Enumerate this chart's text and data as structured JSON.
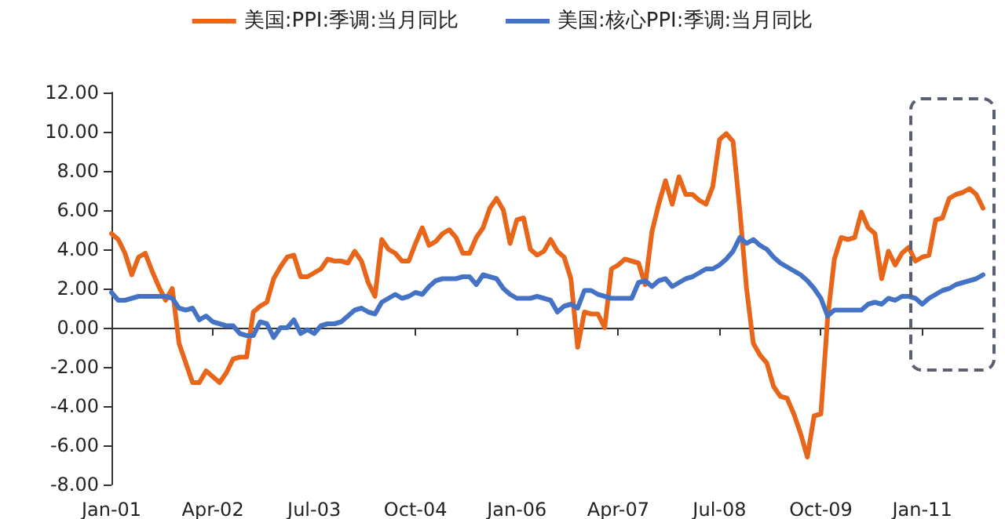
{
  "chart_data": {
    "type": "line",
    "categories": [
      "Jan-01",
      null,
      null,
      null,
      null,
      null,
      null,
      null,
      null,
      null,
      null,
      null,
      null,
      null,
      null,
      "Apr-02",
      null,
      null,
      null,
      null,
      null,
      null,
      null,
      null,
      null,
      null,
      null,
      null,
      null,
      null,
      "Jul-03",
      null,
      null,
      null,
      null,
      null,
      null,
      null,
      null,
      null,
      null,
      null,
      null,
      null,
      null,
      "Oct-04",
      null,
      null,
      null,
      null,
      null,
      null,
      null,
      null,
      null,
      null,
      null,
      null,
      null,
      null,
      "Jan-06",
      null,
      null,
      null,
      null,
      null,
      null,
      null,
      null,
      null,
      null,
      null,
      null,
      null,
      null,
      "Apr-07",
      null,
      null,
      null,
      null,
      null,
      null,
      null,
      null,
      null,
      null,
      null,
      null,
      null,
      null,
      "Jul-08",
      null,
      null,
      null,
      null,
      null,
      null,
      null,
      null,
      null,
      null,
      null,
      null,
      null,
      null,
      "Oct-09",
      null,
      null,
      null,
      null,
      null,
      null,
      null,
      null,
      null,
      null,
      null,
      null,
      null,
      null,
      "Jan-11",
      null,
      null,
      null,
      null,
      null,
      null,
      null,
      null,
      null
    ],
    "series": [
      {
        "name": "美国:PPI:季调:当月同比",
        "color": "#e8661a",
        "values": [
          4.8,
          4.5,
          3.8,
          2.7,
          3.6,
          3.8,
          2.9,
          2.1,
          1.4,
          2.0,
          -0.8,
          -1.8,
          -2.8,
          -2.8,
          -2.2,
          -2.5,
          -2.8,
          -2.3,
          -1.6,
          -1.5,
          -1.5,
          0.8,
          1.1,
          1.3,
          2.5,
          3.1,
          3.6,
          3.7,
          2.6,
          2.6,
          2.8,
          3.0,
          3.5,
          3.4,
          3.4,
          3.3,
          3.9,
          3.4,
          2.3,
          1.6,
          4.5,
          4.0,
          3.8,
          3.4,
          3.4,
          4.3,
          5.1,
          4.2,
          4.4,
          4.8,
          5.0,
          4.6,
          3.8,
          3.8,
          4.6,
          5.1,
          6.1,
          6.6,
          6.0,
          4.3,
          5.5,
          5.6,
          4.0,
          3.7,
          3.9,
          4.5,
          3.9,
          3.6,
          2.5,
          -1.0,
          0.8,
          0.7,
          0.7,
          0.0,
          3.0,
          3.2,
          3.5,
          3.4,
          3.3,
          2.2,
          4.9,
          6.3,
          7.5,
          6.3,
          7.7,
          6.8,
          6.8,
          6.5,
          6.3,
          7.2,
          9.6,
          9.9,
          9.5,
          6.0,
          2.0,
          -0.8,
          -1.4,
          -1.8,
          -3.0,
          -3.5,
          -3.6,
          -4.4,
          -5.4,
          -6.6,
          -4.5,
          -4.4,
          0.5,
          3.5,
          4.6,
          4.5,
          4.6,
          5.9,
          5.1,
          4.8,
          2.5,
          3.9,
          3.2,
          3.8,
          4.1,
          3.4,
          3.6,
          3.7,
          5.5,
          5.6,
          6.6,
          6.8,
          6.9,
          7.1,
          6.8,
          6.1
        ]
      },
      {
        "name": "美国:核心PPI:季调:当月同比",
        "color": "#4472c4",
        "values": [
          1.8,
          1.4,
          1.4,
          1.5,
          1.6,
          1.6,
          1.6,
          1.6,
          1.6,
          1.5,
          1.0,
          0.9,
          1.0,
          0.4,
          0.6,
          0.3,
          0.2,
          0.1,
          0.1,
          -0.3,
          -0.4,
          -0.4,
          0.3,
          0.2,
          -0.5,
          0.0,
          0.0,
          0.4,
          -0.3,
          -0.1,
          -0.3,
          0.1,
          0.2,
          0.2,
          0.3,
          0.6,
          0.9,
          1.0,
          0.8,
          0.7,
          1.3,
          1.5,
          1.7,
          1.5,
          1.6,
          1.8,
          1.7,
          2.1,
          2.4,
          2.5,
          2.5,
          2.5,
          2.6,
          2.6,
          2.2,
          2.7,
          2.6,
          2.5,
          2.0,
          1.7,
          1.5,
          1.5,
          1.5,
          1.6,
          1.5,
          1.4,
          0.8,
          1.1,
          1.2,
          1.0,
          1.9,
          1.9,
          1.7,
          1.6,
          1.5,
          1.5,
          1.5,
          1.5,
          2.3,
          2.4,
          2.1,
          2.4,
          2.5,
          2.1,
          2.3,
          2.5,
          2.6,
          2.8,
          3.0,
          3.0,
          3.2,
          3.5,
          3.9,
          4.6,
          4.3,
          4.5,
          4.2,
          4.0,
          3.6,
          3.3,
          3.1,
          2.9,
          2.7,
          2.4,
          2.0,
          1.5,
          0.6,
          0.9,
          0.9,
          0.9,
          0.9,
          0.9,
          1.2,
          1.3,
          1.2,
          1.5,
          1.4,
          1.6,
          1.6,
          1.5,
          1.2,
          1.5,
          1.7,
          1.9,
          2.0,
          2.2,
          2.3,
          2.4,
          2.5,
          2.7
        ]
      }
    ],
    "ylim": [
      -8,
      12
    ],
    "yticks": [
      {
        "value": -8,
        "label": "-8.00"
      },
      {
        "value": -6,
        "label": "-6.00"
      },
      {
        "value": -4,
        "label": "-4.00"
      },
      {
        "value": -2,
        "label": "-2.00"
      },
      {
        "value": 0,
        "label": "0.00"
      },
      {
        "value": 2,
        "label": "2.00"
      },
      {
        "value": 4,
        "label": "4.00"
      },
      {
        "value": 6,
        "label": "6.00"
      },
      {
        "value": 8,
        "label": "8.00"
      },
      {
        "value": 10,
        "label": "10.00"
      },
      {
        "value": 12,
        "label": "12.00"
      }
    ],
    "legend": "top",
    "marker": "none",
    "line_style": "solid"
  }
}
